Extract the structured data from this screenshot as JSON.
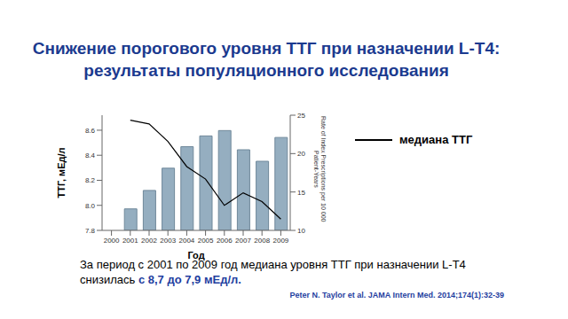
{
  "chart_data": {
    "type": "bar",
    "title": "Снижение порогового уровня ТТГ при назначении L-T4:\nрезультаты популяционного исследования",
    "x_label": "Год",
    "y_label": "ТТГ, мЕд/л",
    "y2_label": "Rate of Index Prescriptions per 10 000 Patient-Years",
    "categories": [
      "2000",
      "2001",
      "2002",
      "2003",
      "2004",
      "2005",
      "2006",
      "2007",
      "2008",
      "2009"
    ],
    "series": [
      {
        "type": "bar",
        "axis": "y2",
        "color": "#95aec0",
        "values": [
          null,
          12.8,
          15.2,
          18.1,
          20.9,
          22.3,
          23.0,
          20.5,
          19.0,
          22.1
        ]
      },
      {
        "name": "медиана ТТГ",
        "type": "line",
        "color": "#000000",
        "values": [
          null,
          8.68,
          8.65,
          8.51,
          8.31,
          8.21,
          8.0,
          8.1,
          8.03,
          7.89
        ]
      }
    ],
    "ylim": [
      7.8,
      8.72
    ],
    "yticks": [
      7.8,
      {
        "value": 8,
        "label": "8.0"
      },
      8.2,
      8.4,
      8.6
    ],
    "y2lim": [
      10,
      25
    ],
    "y2ticks": [
      10,
      15,
      20,
      25
    ],
    "legend": "right",
    "caption": [
      "За период с 2001 по 2009 год медиана уровня ТТГ при назначении L-T4 снизилась ",
      "с 8,7 до 7,9 мЕд/л."
    ],
    "source": "Peter N. Taylor et al. JAMA Intern Med. 2014;174(1):32-39"
  }
}
